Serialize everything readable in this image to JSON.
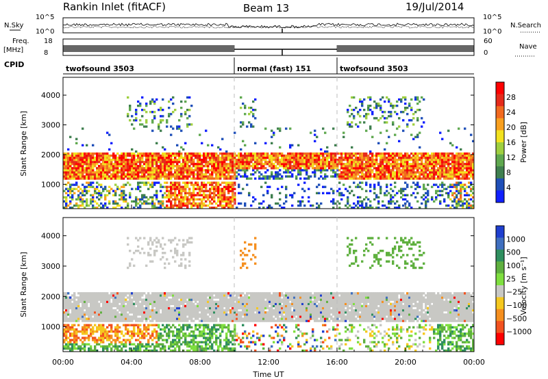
{
  "header": {
    "title": "Rankin Inlet (fitACF)",
    "beam": "Beam 13",
    "date": "19/Jul/2014"
  },
  "top_panels": {
    "nsky_label": "N.Sky",
    "nsky_ticks": [
      "10^5",
      "10^0"
    ],
    "nsearch_label": "N.Search",
    "nsearch_ticks": [
      "10^5",
      "10^0"
    ],
    "freq_label": "Freq.",
    "freq_unit": "[MHz]",
    "freq_ticks": [
      "18",
      "8"
    ],
    "nave_label": "Nave",
    "nave_ticks": [
      "60",
      "0"
    ],
    "cpid_label": "CPID",
    "cpid_segments": [
      {
        "label": "twofsound 3503",
        "start_hour": 0,
        "end_hour": 10
      },
      {
        "label": "normal (fast) 151",
        "start_hour": 10,
        "end_hour": 16
      },
      {
        "label": "twofsound 3503",
        "start_hour": 16,
        "end_hour": 24
      }
    ]
  },
  "axes": {
    "xlabel": "Time UT",
    "ylabel": "Slant Range [km]",
    "x_ticks": [
      "00:00",
      "04:00",
      "08:00",
      "12:00",
      "16:00",
      "20:00",
      "00:00"
    ],
    "y_ticks": [
      "1000",
      "2000",
      "3000",
      "4000"
    ]
  },
  "colorbars": {
    "power": {
      "label": "Power [dB]",
      "ticks": [
        "4",
        "8",
        "12",
        "16",
        "20",
        "24",
        "28"
      ],
      "colors": [
        "#1020ff",
        "#1f4fb8",
        "#3f7f4f",
        "#5fa84f",
        "#9fcf3f",
        "#f2e21f",
        "#f9a01f",
        "#f26a1f",
        "#e62a1a",
        "#ff0000"
      ]
    },
    "velocity": {
      "label": "Velocity [m s⁻¹]",
      "ticks": [
        "1000",
        "500",
        "100",
        "25",
        "−25",
        "−100",
        "−500",
        "−1000"
      ],
      "colors": [
        "#1f3fcf",
        "#3f6fbf",
        "#2f8f5f",
        "#5fb03f",
        "#7fdf3f",
        "#c8c8c4",
        "#f5c81f",
        "#f58f1f",
        "#f2521f",
        "#ff0000"
      ]
    }
  },
  "chart_data": {
    "type": "heatmap",
    "title": "Rankin Inlet (fitACF)",
    "xlabel": "Time UT",
    "ylabel": "Slant Range [km]",
    "xlim_hours": [
      0,
      24
    ],
    "ylim_km": [
      180,
      4600
    ],
    "mode_boundaries_hours": [
      10,
      16
    ],
    "power_regions": [
      {
        "t0": 0.0,
        "t1": 24.0,
        "r0": 1100,
        "r1": 2050,
        "level": "high",
        "note": "main scatter band"
      },
      {
        "t0": 0.0,
        "t1": 10.0,
        "r0": 250,
        "r1": 1000,
        "level": "high"
      },
      {
        "t0": 10.0,
        "t1": 16.0,
        "r0": 1000,
        "r1": 1700,
        "level": "low"
      },
      {
        "t0": 16.0,
        "t1": 24.0,
        "r0": 300,
        "r1": 1000,
        "level": "low"
      },
      {
        "t0": 3.7,
        "t1": 7.5,
        "r0": 3000,
        "r1": 3900,
        "level": "low"
      },
      {
        "t0": 16.5,
        "t1": 21.0,
        "r0": 2900,
        "r1": 3700,
        "level": "low"
      }
    ],
    "velocity_regions": [
      {
        "t0": 0.0,
        "t1": 24.0,
        "r0": 1100,
        "r1": 2100,
        "v": "near zero"
      },
      {
        "t0": 0.0,
        "t1": 6.0,
        "r0": 400,
        "r1": 1000,
        "v": "negative"
      },
      {
        "t0": 4.0,
        "t1": 10.0,
        "r0": 250,
        "r1": 900,
        "v": "positive"
      },
      {
        "t0": 21.5,
        "t1": 24.0,
        "r0": 500,
        "r1": 1000,
        "v": "positive"
      }
    ],
    "power_colorbar": {
      "label": "Power [dB]",
      "ticks": [
        4,
        8,
        12,
        16,
        20,
        24,
        28
      ]
    },
    "velocity_colorbar": {
      "label": "Velocity [m s⁻¹]",
      "ticks": [
        1000,
        500,
        100,
        25,
        -25,
        -100,
        -500,
        -1000
      ]
    }
  }
}
